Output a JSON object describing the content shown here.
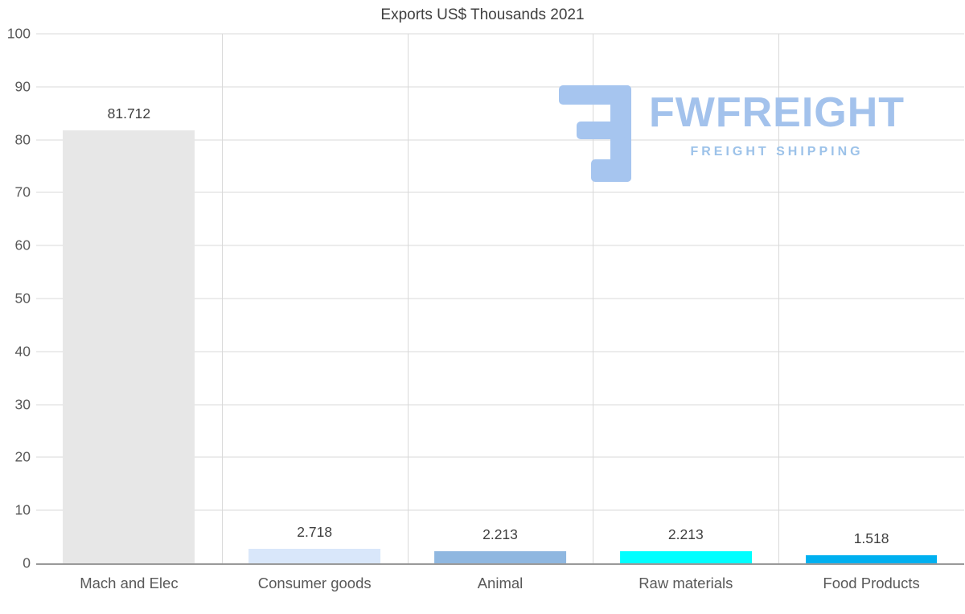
{
  "chart_data": {
    "type": "bar",
    "title": "Exports US$ Thousands 2021",
    "categories": [
      "Mach and Elec",
      "Consumer goods",
      "Animal",
      "Raw materials",
      "Food Products"
    ],
    "values": [
      81.712,
      2.718,
      2.213,
      2.213,
      1.518
    ],
    "value_labels": [
      "81.712",
      "2.718",
      "2.213",
      "2.213",
      "1.518"
    ],
    "bar_colors": [
      "#e7e7e7",
      "#d9e7fa",
      "#8fb7e0",
      "#00ffff",
      "#00b0f0"
    ],
    "xlabel": "",
    "ylabel": "",
    "ylim": [
      0,
      100
    ],
    "yticks": [
      0,
      10,
      20,
      30,
      40,
      50,
      60,
      70,
      80,
      90,
      100
    ],
    "grid": "horizontal and vertical light gray gridlines",
    "legend": "none"
  },
  "watermark": {
    "brand": "FWFREIGHT",
    "tagline": "FREIGHT SHIPPING",
    "icon": "fwfreight-logo-icon",
    "color": "#a6c5ef"
  }
}
